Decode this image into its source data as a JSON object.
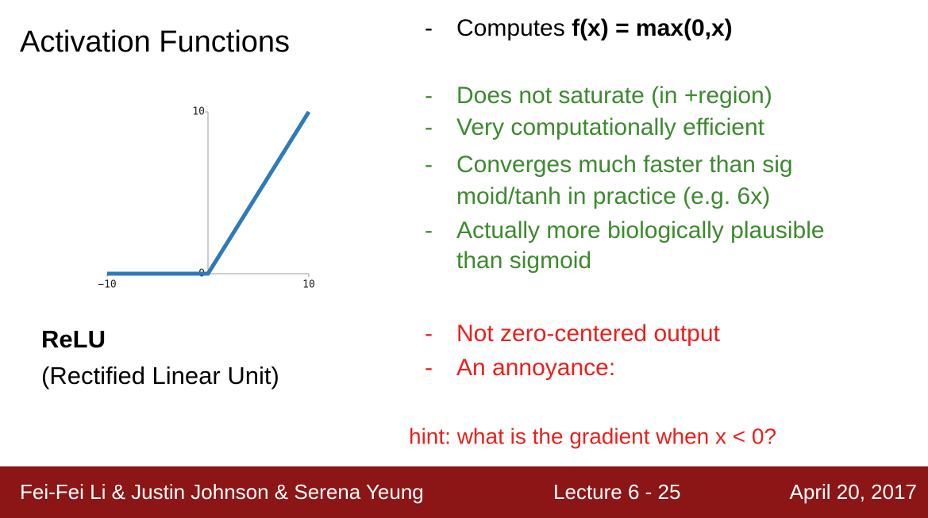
{
  "title": "Activation Functions",
  "plot": {
    "xlim": [
      -10,
      10
    ],
    "ylim": [
      0,
      10
    ],
    "xticks": [
      {
        "value": -10,
        "label": "−10"
      },
      10
    ],
    "yticks": [
      0,
      10
    ],
    "x": [
      -10,
      0,
      10
    ],
    "y": [
      0,
      0,
      10
    ],
    "color": "#2f7ab8"
  },
  "name": "ReLU",
  "full_name": "(Rectified Linear Unit)",
  "formula": {
    "prefix": "Computes ",
    "expr": "f(x) = max(0,x)"
  },
  "pros": [
    {
      "lines": [
        "Does not saturate (in +region)"
      ]
    },
    {
      "lines": [
        "Very computationally efficient"
      ]
    },
    {
      "lines": [
        "Converges much faster than  sig",
        "moid/tanh in practice (e.g. 6x)"
      ]
    },
    {
      "lines": [
        "Actually more biologically plausible",
        "than sigmoid"
      ]
    }
  ],
  "cons": [
    {
      "lines": [
        "Not zero-centered output"
      ]
    },
    {
      "lines": [
        "An annoyance:"
      ]
    }
  ],
  "hint": "hint: what is the gradient when x < 0?",
  "footer": {
    "authors": "Fei-Fei Li & Justin Johnson & Serena Yeung",
    "lecture": "Lecture 6 -",
    "page": "25",
    "date": "April 20, 2017"
  }
}
